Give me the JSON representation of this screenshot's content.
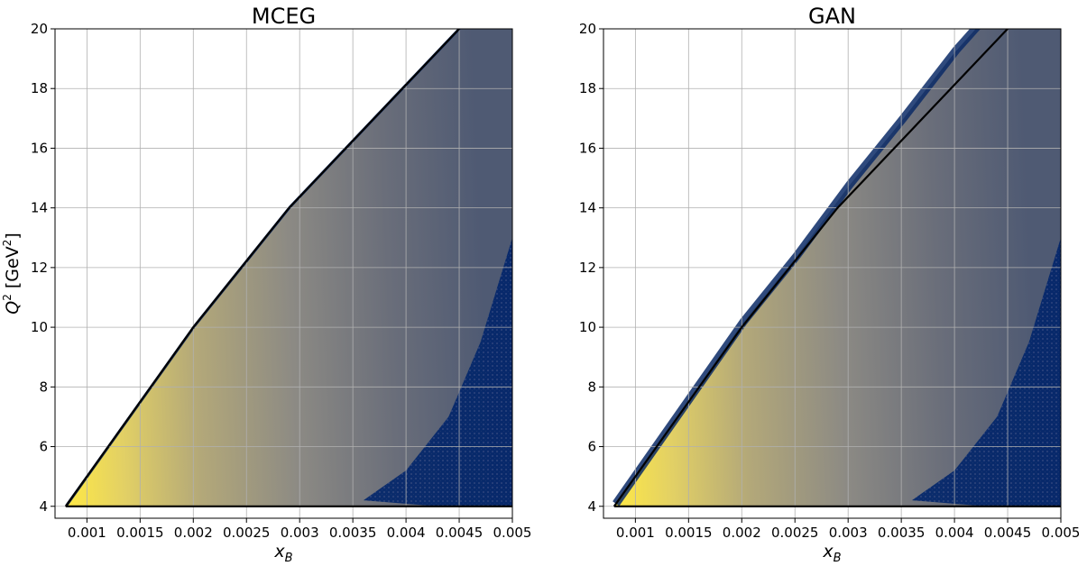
{
  "chart_data": [
    {
      "type": "heatmap",
      "title": "MCEG",
      "xlabel": "x_B",
      "ylabel": "Q^2 [GeV^2]",
      "xlim": [
        0.0007,
        0.005
      ],
      "ylim": [
        3.6,
        20
      ],
      "x_ticks": [
        0.001,
        0.0015,
        0.002,
        0.0025,
        0.003,
        0.0035,
        0.004,
        0.0045,
        0.005
      ],
      "x_tick_labels": [
        "0.001",
        "0.0015",
        "0.002",
        "0.0025",
        "0.003",
        "0.0035",
        "0.004",
        "0.0045",
        "0.005"
      ],
      "y_ticks": [
        4,
        6,
        8,
        10,
        12,
        14,
        16,
        18,
        20
      ],
      "y_tick_labels": [
        "4",
        "6",
        "8",
        "10",
        "12",
        "14",
        "16",
        "18",
        "20"
      ],
      "grid": true,
      "colormap": "cividis",
      "boundary_line": [
        [
          0.0008,
          4.0
        ],
        [
          0.002,
          10.0
        ],
        [
          0.0029,
          14.0
        ],
        [
          0.0045,
          20.0
        ]
      ],
      "bottom_line": [
        [
          0.0008,
          4.0
        ],
        [
          0.005,
          4.0
        ]
      ],
      "data_edge": [
        [
          0.0008,
          4.0
        ],
        [
          0.002,
          10.0
        ],
        [
          0.0029,
          14.0
        ],
        [
          0.0045,
          20.0
        ]
      ],
      "density_trend": "highest near (0.0008, 4) along the upper boundary, decreasing toward large x_B"
    },
    {
      "type": "heatmap",
      "title": "GAN",
      "xlabel": "x_B",
      "ylabel": "",
      "xlim": [
        0.0007,
        0.005
      ],
      "ylim": [
        3.6,
        20
      ],
      "x_ticks": [
        0.001,
        0.0015,
        0.002,
        0.0025,
        0.003,
        0.0035,
        0.004,
        0.0045,
        0.005
      ],
      "x_tick_labels": [
        "0.001",
        "0.0015",
        "0.002",
        "0.0025",
        "0.003",
        "0.0035",
        "0.004",
        "0.0045",
        "0.005"
      ],
      "y_ticks": [
        4,
        6,
        8,
        10,
        12,
        14,
        16,
        18,
        20
      ],
      "y_tick_labels": [
        "4",
        "6",
        "8",
        "10",
        "12",
        "14",
        "16",
        "18",
        "20"
      ],
      "grid": true,
      "colormap": "cividis",
      "boundary_line": [
        [
          0.0008,
          4.0
        ],
        [
          0.002,
          10.0
        ],
        [
          0.0029,
          14.0
        ],
        [
          0.0045,
          20.0
        ]
      ],
      "bottom_line": [
        [
          0.0008,
          4.0
        ],
        [
          0.005,
          4.0
        ]
      ],
      "data_edge": [
        [
          0.0008,
          4.0
        ],
        [
          0.002,
          10.1
        ],
        [
          0.0025,
          12.3
        ],
        [
          0.003,
          14.7
        ],
        [
          0.0035,
          16.9
        ],
        [
          0.004,
          19.2
        ],
        [
          0.0042,
          20.0
        ]
      ],
      "density_trend": "highest near (0.0008, 4), extends beyond the kinematic boundary at large Q^2"
    }
  ]
}
